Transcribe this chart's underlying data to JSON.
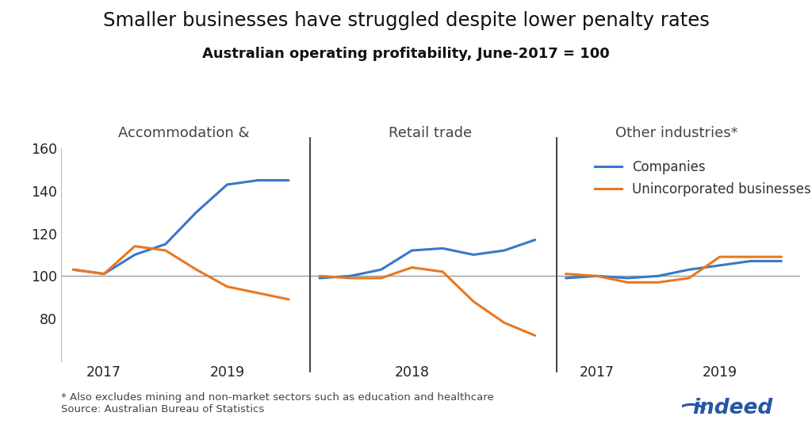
{
  "title": "Smaller businesses have struggled despite lower penalty rates",
  "subtitle": "Australian operating profitability, June-2017 = 100",
  "ylim": [
    60,
    160
  ],
  "yticks": [
    80,
    100,
    120,
    140,
    160
  ],
  "footnote": "* Also excludes mining and non-market sectors such as education and healthcare\nSource: Australian Bureau of Statistics",
  "legend_labels": [
    "Companies",
    "Unincorporated businesses"
  ],
  "line_colors": [
    "#3878c8",
    "#e87722"
  ],
  "panel1": {
    "label": "Accommodation &",
    "x_ticks": [
      2017,
      2019
    ],
    "xlim": [
      2016.3,
      2020.3
    ],
    "companies_x": [
      2016.5,
      2017.0,
      2017.5,
      2018.0,
      2018.5,
      2019.0,
      2019.5,
      2020.0
    ],
    "companies_y": [
      103,
      101,
      110,
      115,
      130,
      143,
      145,
      145
    ],
    "uninc_x": [
      2016.5,
      2017.0,
      2017.5,
      2018.0,
      2018.5,
      2019.0,
      2019.5,
      2020.0
    ],
    "uninc_y": [
      103,
      101,
      114,
      112,
      103,
      95,
      92,
      89
    ]
  },
  "panel2": {
    "label": "Retail trade",
    "x_ticks": [
      2018
    ],
    "xlim": [
      2016.3,
      2020.3
    ],
    "companies_x": [
      2016.5,
      2017.0,
      2017.5,
      2018.0,
      2018.5,
      2019.0,
      2019.5,
      2020.0
    ],
    "companies_y": [
      99,
      100,
      103,
      112,
      113,
      110,
      112,
      117
    ],
    "uninc_x": [
      2016.5,
      2017.0,
      2017.5,
      2018.0,
      2018.5,
      2019.0,
      2019.5,
      2020.0
    ],
    "uninc_y": [
      100,
      99,
      99,
      104,
      102,
      88,
      78,
      72
    ]
  },
  "panel3": {
    "label": "Other industries*",
    "x_ticks": [
      2017,
      2019
    ],
    "xlim": [
      2016.3,
      2020.3
    ],
    "companies_x": [
      2016.5,
      2017.0,
      2017.5,
      2018.0,
      2018.5,
      2019.0,
      2019.5,
      2020.0
    ],
    "companies_y": [
      99,
      100,
      99,
      100,
      103,
      105,
      107,
      107
    ],
    "uninc_x": [
      2016.5,
      2017.0,
      2017.5,
      2018.0,
      2018.5,
      2019.0,
      2019.5,
      2020.0
    ],
    "uninc_y": [
      101,
      100,
      97,
      97,
      99,
      109,
      109,
      109
    ]
  },
  "background_color": "#ffffff",
  "line_width": 2.2,
  "divider_color": "#333333",
  "hline_color": "#999999",
  "hline_y": 100,
  "spine_color": "#bbbbbb"
}
